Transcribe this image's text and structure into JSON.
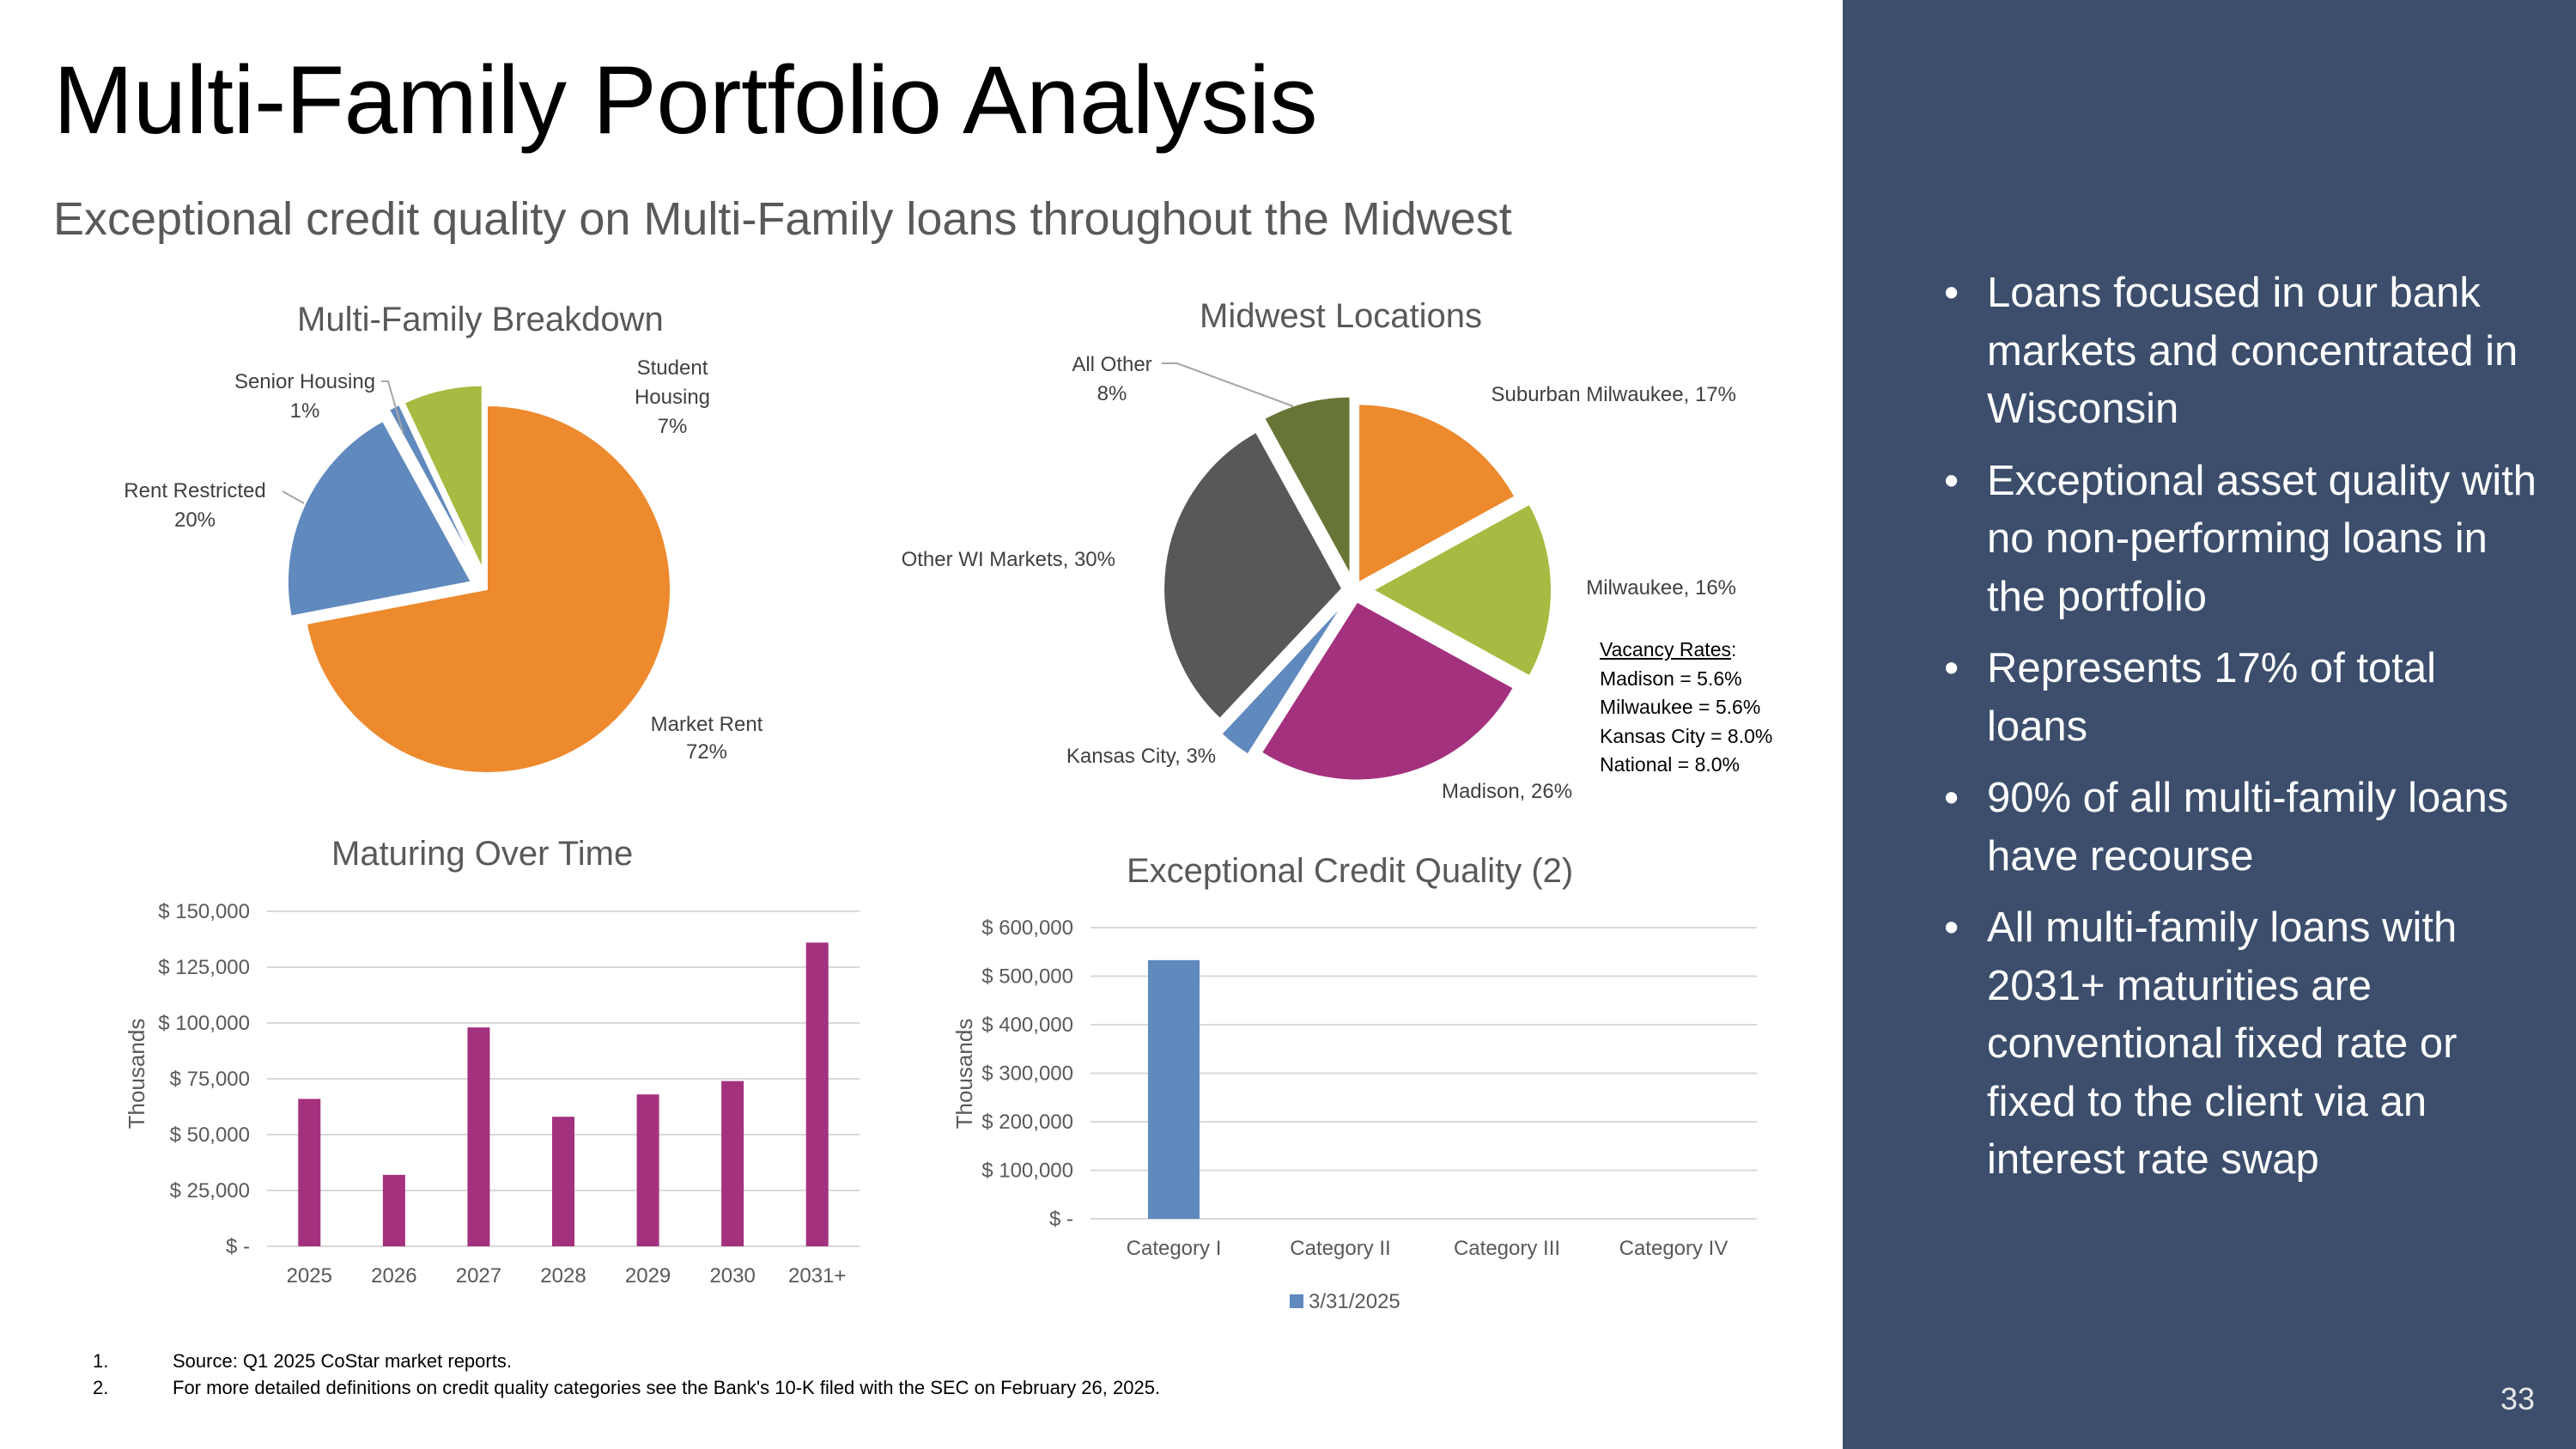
{
  "title": "Multi-Family Portfolio Analysis",
  "subtitle": "Exceptional credit quality on Multi-Family loans throughout the Midwest",
  "sidebar": {
    "bullets": [
      "Loans focused in our bank markets and concentrated in Wisconsin",
      "Exceptional asset quality with no non-performing loans in the portfolio",
      "Represents 17% of total loans",
      "90% of all multi-family loans have recourse",
      "All multi-family loans with 2031+ maturities are conventional fixed rate or fixed to the client via an interest rate swap"
    ],
    "page_number": "33"
  },
  "vacancy": {
    "heading": "Vacancy Rates",
    "lines": [
      "Madison = 5.6%",
      "Milwaukee = 5.6%",
      "Kansas City = 8.0%",
      "National = 8.0%"
    ]
  },
  "footnotes": [
    {
      "num": "1.",
      "text": "Source: Q1 2025 CoStar market reports."
    },
    {
      "num": "2.",
      "text": "For more detailed definitions on credit quality categories see the Bank's 10-K filed with the SEC on February 26, 2025."
    }
  ],
  "colors": {
    "orange": "#ed8a2e",
    "blue": "#6089bd",
    "green": "#a5bb41",
    "purple": "#a3317e",
    "gray": "#585858",
    "darkgreen": "#677536",
    "sidebar": "#3c4e6c"
  },
  "chart_data": [
    {
      "type": "pie",
      "title": "Multi-Family Breakdown",
      "slices": [
        {
          "label": "Market Rent",
          "value": 72,
          "color": "#ed8a2e"
        },
        {
          "label": "Rent Restricted",
          "value": 20,
          "color": "#6089bd"
        },
        {
          "label": "Senior Housing",
          "value": 1,
          "color": "#6089bd"
        },
        {
          "label": "Student Housing",
          "value": 7,
          "color": "#a5bb41"
        }
      ],
      "labels": [
        {
          "lines": [
            "Market Rent",
            "72%"
          ]
        },
        {
          "lines": [
            "Rent Restricted",
            "20%"
          ]
        },
        {
          "lines": [
            "Senior Housing",
            "1%"
          ]
        },
        {
          "lines": [
            "Student",
            "Housing",
            "7%"
          ]
        }
      ]
    },
    {
      "type": "pie",
      "title": "Midwest Locations",
      "slices": [
        {
          "label": "Suburban Milwaukee",
          "value": 17,
          "color": "#ed8a2e"
        },
        {
          "label": "Milwaukee",
          "value": 16,
          "color": "#a5bb41"
        },
        {
          "label": "Madison",
          "value": 26,
          "color": "#a3317e"
        },
        {
          "label": "Kansas City",
          "value": 3,
          "color": "#6089bd"
        },
        {
          "label": "Other WI Markets",
          "value": 30,
          "color": "#585858"
        },
        {
          "label": "All Other",
          "value": 8,
          "color": "#677536"
        }
      ],
      "labels": [
        {
          "lines": [
            "Suburban Milwaukee, 17%"
          ]
        },
        {
          "lines": [
            "Milwaukee, 16%"
          ]
        },
        {
          "lines": [
            "Madison, 26%"
          ]
        },
        {
          "lines": [
            "Kansas City, 3%"
          ]
        },
        {
          "lines": [
            "Other WI Markets, 30%"
          ]
        },
        {
          "lines": [
            "All Other",
            "8%"
          ]
        }
      ]
    },
    {
      "type": "bar",
      "title": "Maturing Over Time",
      "ylabel": "Thousands",
      "categories": [
        "2025",
        "2026",
        "2027",
        "2028",
        "2029",
        "2030",
        "2031+"
      ],
      "values": [
        66000,
        32000,
        98000,
        58000,
        68000,
        74000,
        136000
      ],
      "ylim": [
        0,
        150000
      ],
      "yticks": [
        0,
        25000,
        50000,
        75000,
        100000,
        125000,
        150000
      ],
      "ytick_labels": [
        "$ -",
        "$ 25,000",
        "$ 50,000",
        "$ 75,000",
        "$ 100,000",
        "$ 125,000",
        "$ 150,000"
      ],
      "color": "#a3317e",
      "grid": true
    },
    {
      "type": "bar",
      "title": "Exceptional Credit Quality (2)",
      "ylabel": "Thousands",
      "categories": [
        "Category I",
        "Category II",
        "Category III",
        "Category IV"
      ],
      "series": [
        {
          "name": "3/31/2025",
          "values": [
            533000,
            0,
            0,
            0
          ],
          "color": "#6089bd"
        }
      ],
      "ylim": [
        0,
        600000
      ],
      "yticks": [
        0,
        100000,
        200000,
        300000,
        400000,
        500000,
        600000
      ],
      "ytick_labels": [
        "$ -",
        "$ 100,000",
        "$ 200,000",
        "$ 300,000",
        "$ 400,000",
        "$ 500,000",
        "$ 600,000"
      ],
      "legend": "bottom",
      "grid": true
    }
  ]
}
